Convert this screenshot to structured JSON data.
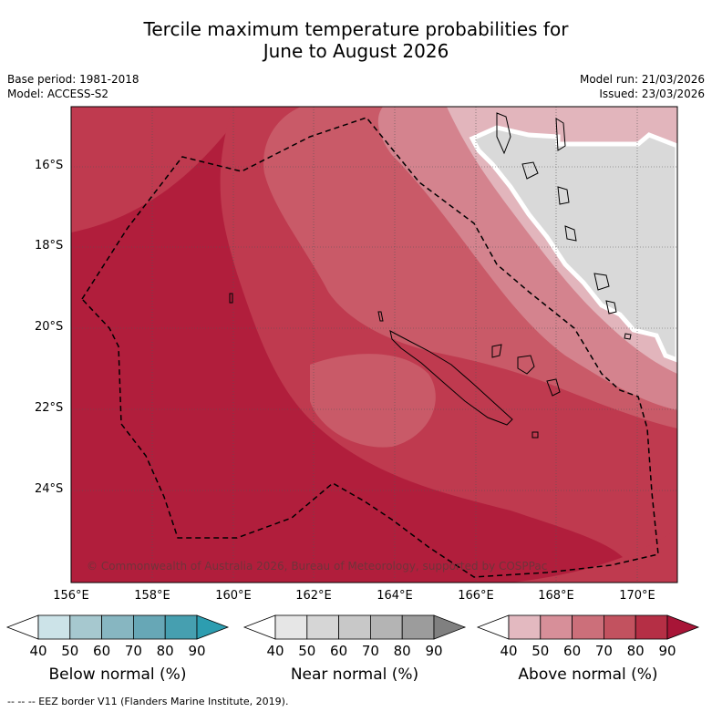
{
  "title_line1": "Tercile maximum temperature probabilities for",
  "title_line2": "June to August 2026",
  "base_period": "Base period: 1981-2018",
  "model": "Model: ACCESS-S2",
  "model_run": "Model run: 21/03/2026",
  "issued": "Issued: 23/03/2026",
  "latitudes": [
    "16°S",
    "18°S",
    "20°S",
    "22°S",
    "24°S"
  ],
  "longitudes": [
    "156°E",
    "158°E",
    "160°E",
    "162°E",
    "164°E",
    "166°E",
    "168°E",
    "170°E"
  ],
  "copyright": "© Commonwealth of Australia 2026, Bureau of Meteorology, supported by COSPPac",
  "colorbars": [
    {
      "title": "Below normal (%)",
      "ticks": [
        "40",
        "50",
        "60",
        "70",
        "80",
        "90"
      ],
      "colors": [
        "#ffffff",
        "#cce3e8",
        "#a6c8cf",
        "#87b6c1",
        "#67a7b6",
        "#469fb0",
        "#2d9db0"
      ]
    },
    {
      "title": "Near normal (%)",
      "ticks": [
        "40",
        "50",
        "60",
        "70",
        "80",
        "90"
      ],
      "colors": [
        "#ffffff",
        "#e6e6e6",
        "#d6d6d6",
        "#c8c8c8",
        "#b4b4b4",
        "#9c9c9c",
        "#808080"
      ]
    },
    {
      "title": "Above normal (%)",
      "ticks": [
        "40",
        "50",
        "60",
        "70",
        "80",
        "90"
      ],
      "colors": [
        "#ffffff",
        "#e3b9c0",
        "#d78f99",
        "#cc6f7a",
        "#c2525f",
        "#b52f45",
        "#a81537"
      ]
    }
  ],
  "footnote": "--  --  -- EEZ border V11 (Flanders Marine Institute, 2019)."
}
